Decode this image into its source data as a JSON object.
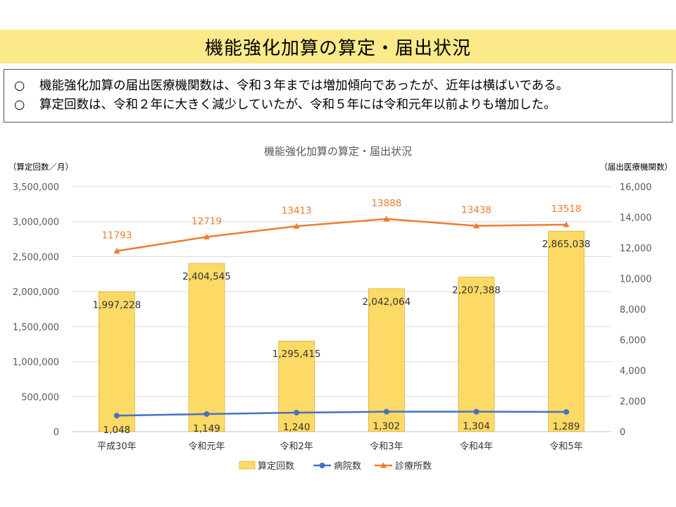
{
  "page": {
    "title": "機能強化加算の算定・届出状況",
    "summary": [
      {
        "mark": "○",
        "text": "機能強化加算の届出医療機関数は、令和３年までは増加傾向であったが、近年は横ばいである。"
      },
      {
        "mark": "○",
        "text": "算定回数は、令和２年に大きく減少していたが、令和５年には令和元年以前よりも増加した。"
      }
    ]
  },
  "colors": {
    "banner": "#fbe98a",
    "bar": "#fdd965",
    "bar_stroke": "#c9a227",
    "hospital": "#4472c4",
    "clinic": "#ed7d31",
    "grid": "#d9d9d9",
    "axis_text": "#595959"
  },
  "chart_data": {
    "type": "bar",
    "title": "機能強化加算の算定・届出状況",
    "ylabel_left": "（算定回数／月）",
    "ylabel_right": "（届出医療機関数）",
    "categories": [
      "平成30年",
      "令和元年",
      "令和2年",
      "令和3年",
      "令和4年",
      "令和5年"
    ],
    "ylim_left": [
      0,
      3500000
    ],
    "yticks_left": [
      0,
      500000,
      1000000,
      1500000,
      2000000,
      2500000,
      3000000,
      3500000
    ],
    "yticks_left_labels": [
      "0",
      "500,000",
      "1,000,000",
      "1,500,000",
      "2,000,000",
      "2,500,000",
      "3,000,000",
      "3,500,000"
    ],
    "ylim_right": [
      0,
      16000
    ],
    "yticks_right": [
      0,
      2000,
      4000,
      6000,
      8000,
      10000,
      12000,
      14000,
      16000
    ],
    "yticks_right_labels": [
      "0",
      "2,000",
      "4,000",
      "6,000",
      "8,000",
      "10,000",
      "12,000",
      "14,000",
      "16,000"
    ],
    "grid": true,
    "legend_position": "bottom",
    "series": [
      {
        "name": "算定回数",
        "kind": "bar",
        "axis": "left",
        "values": [
          1997228,
          2404545,
          1295415,
          2042064,
          2207388,
          2865038
        ],
        "labels": [
          "1,997,228",
          "2,404,545",
          "1,295,415",
          "2,042,064",
          "2,207,388",
          "2,865,038"
        ]
      },
      {
        "name": "病院数",
        "kind": "line",
        "axis": "right",
        "values": [
          1048,
          1149,
          1240,
          1302,
          1304,
          1289
        ],
        "labels": [
          "1,048",
          "1,149",
          "1,240",
          "1,302",
          "1,304",
          "1,289"
        ]
      },
      {
        "name": "診療所数",
        "kind": "line",
        "axis": "right",
        "values": [
          11793,
          12719,
          13413,
          13888,
          13438,
          13518
        ],
        "labels": [
          "11793",
          "12719",
          "13413",
          "13888",
          "13438",
          "13518"
        ]
      }
    ]
  }
}
